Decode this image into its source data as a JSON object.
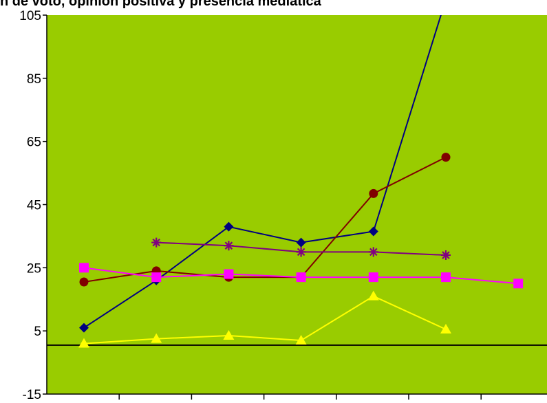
{
  "chart_data": {
    "type": "line",
    "title": "n de voto, opinión positiva y presencia mediática",
    "xlabel": "",
    "ylabel": "",
    "ylim": [
      -15,
      105
    ],
    "yticks": [
      -15,
      5,
      25,
      45,
      65,
      85,
      105
    ],
    "grid": false,
    "legend": "none",
    "reference_line": {
      "y": 0.5
    },
    "x_categories": 7,
    "background": "#99cc00",
    "series": [
      {
        "color": "#000080",
        "marker": "diamond",
        "values": [
          6,
          21,
          38,
          33,
          36.5,
          110,
          null
        ]
      },
      {
        "color": "#800000",
        "marker": "circle",
        "values": [
          20.5,
          24,
          22,
          22,
          48.5,
          60,
          null
        ]
      },
      {
        "color": "#ff00ff",
        "marker": "square",
        "values": [
          25,
          22,
          23,
          22,
          22,
          22,
          20
        ]
      },
      {
        "color": "#800080",
        "marker": "star",
        "values": [
          null,
          33,
          32,
          30,
          30,
          29,
          null
        ]
      },
      {
        "color": "#ffff00",
        "marker": "triangle",
        "values": [
          1,
          2.5,
          3.5,
          2,
          16,
          5.5,
          null
        ]
      }
    ]
  }
}
